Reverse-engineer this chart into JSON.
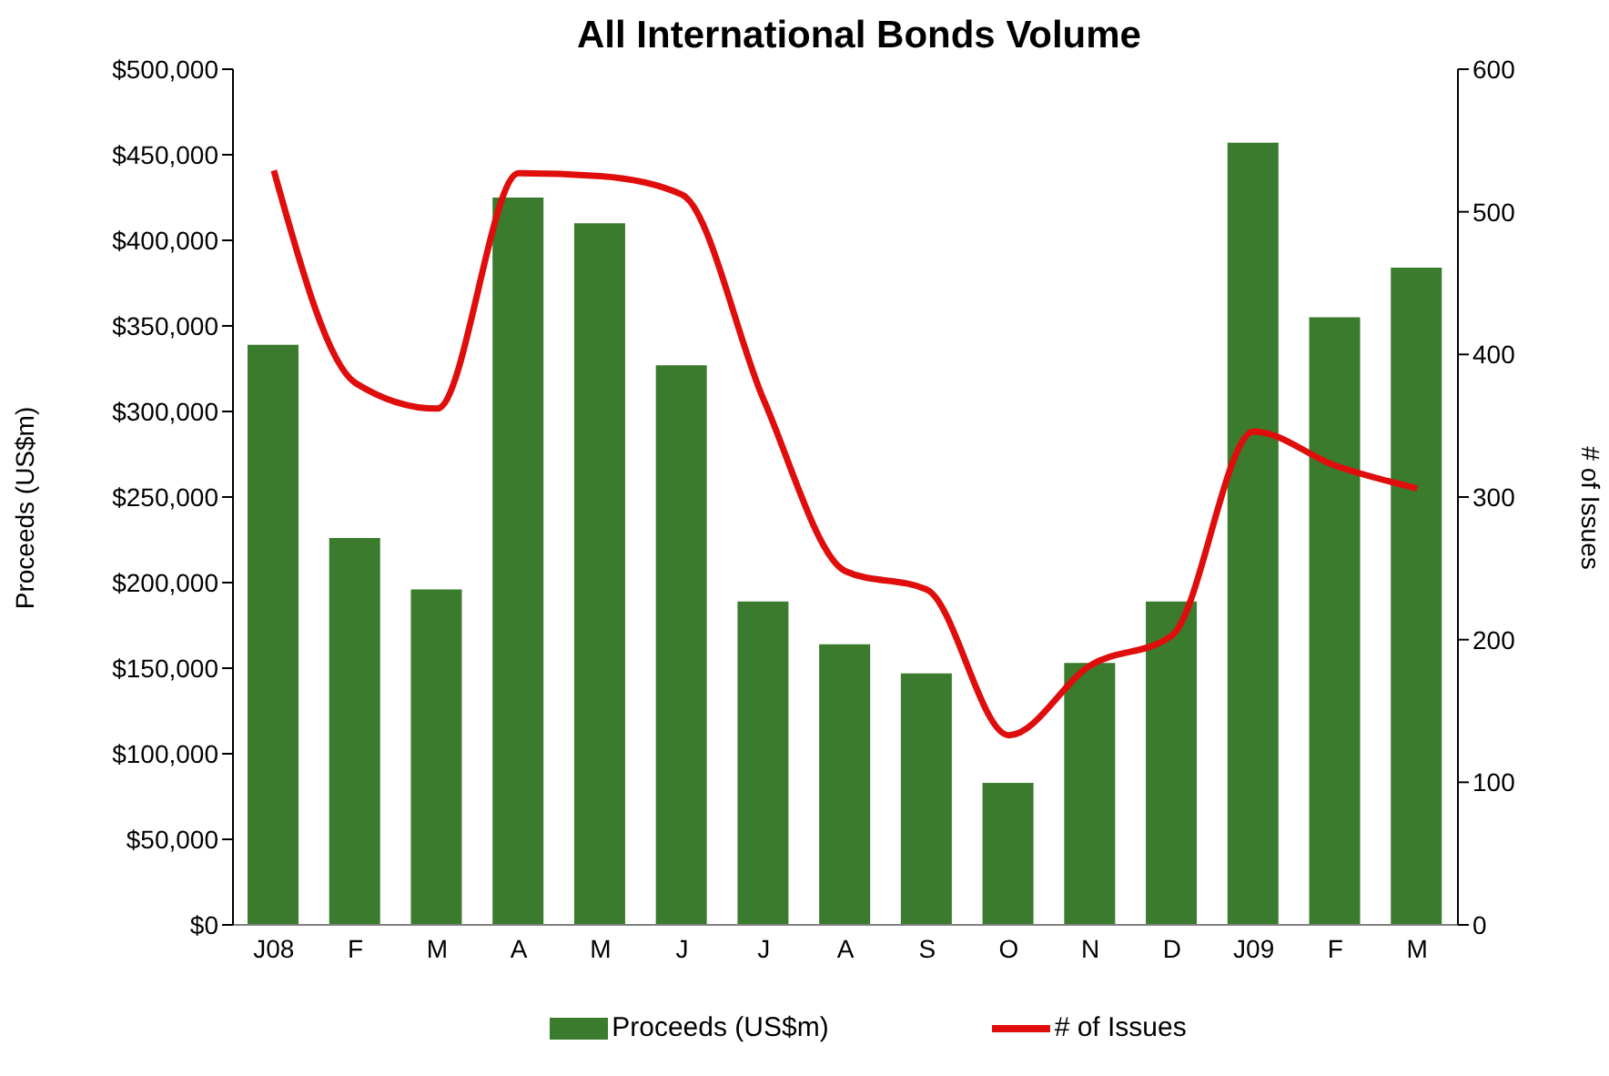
{
  "chart_data": {
    "type": "bar",
    "title": "All International Bonds Volume",
    "ylabel": "Proceeds (US$m)",
    "y2label": "# of Issues",
    "categories": [
      "J08",
      "F",
      "M",
      "A",
      "M",
      "J",
      "J",
      "A",
      "S",
      "O",
      "N",
      "D",
      "J09",
      "F",
      "M"
    ],
    "series": [
      {
        "name": "Proceeds (US$m)",
        "color": "#3a7b2e",
        "values": [
          339000,
          226000,
          196000,
          425000,
          410000,
          327000,
          189000,
          164000,
          147000,
          83000,
          153000,
          189000,
          457000,
          355000,
          384000
        ]
      },
      {
        "name": "# of Issues",
        "type": "line",
        "axis": "y2",
        "color": "#e00d0d",
        "values": [
          529,
          380,
          362,
          527,
          525,
          512,
          368,
          248,
          235,
          133,
          182,
          203,
          346,
          322,
          306
        ]
      }
    ],
    "ylim": [
      0,
      500000
    ],
    "yticks": [
      {
        "value": 0,
        "label": "$0"
      },
      {
        "value": 50000,
        "label": "$50,000"
      },
      {
        "value": 100000,
        "label": "$100,000"
      },
      {
        "value": 150000,
        "label": "$150,000"
      },
      {
        "value": 200000,
        "label": "$200,000"
      },
      {
        "value": 250000,
        "label": "$250,000"
      },
      {
        "value": 300000,
        "label": "$300,000"
      },
      {
        "value": 350000,
        "label": "$350,000"
      },
      {
        "value": 400000,
        "label": "$400,000"
      },
      {
        "value": 450000,
        "label": "$450,000"
      },
      {
        "value": 500000,
        "label": "$500,000"
      }
    ],
    "y2lim": [
      0,
      600
    ],
    "y2ticks": [
      0,
      100,
      200,
      300,
      400,
      500,
      600
    ],
    "grid": false,
    "legend": "bottom",
    "marker": "none",
    "line_style": "solid"
  }
}
